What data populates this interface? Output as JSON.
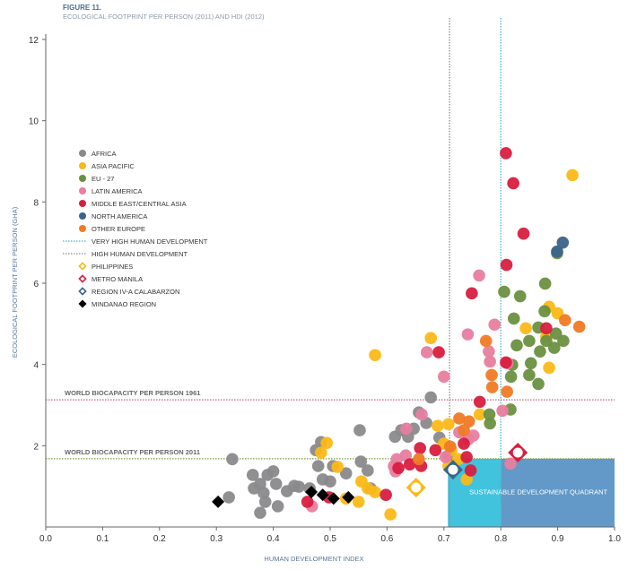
{
  "header": {
    "figure_label": "FIGURE 11.",
    "subtitle": "ECOLOGICAL FOOTPRINT PER PERSON (2011) AND HDI (2012)"
  },
  "chart_data": {
    "type": "scatter",
    "title": "ECOLOGICAL FOOTPRINT PER PERSON (2011) AND HDI (2012)",
    "xlabel": "HUMAN DEVELOPMENT INDEX",
    "ylabel": "ECOLOGICAL FOOTPRINT PER PERSON (GHA)",
    "xlim": [
      0,
      1.0
    ],
    "ylim": [
      0,
      12
    ],
    "x_ticks": [
      "0.0",
      "0.1",
      "0.2",
      "0.3",
      "0.4",
      "0.5",
      "0.6",
      "0.7",
      "0.8",
      "0.9",
      "1.0"
    ],
    "y_ticks": [
      "2",
      "4",
      "6",
      "8",
      "10",
      "12"
    ],
    "grid": false,
    "legend_placement": "left",
    "series": [
      {
        "name": "AFRICA",
        "color": "#8a8a8c",
        "marker": "circle",
        "points": [
          [
            0.328,
            1.67
          ],
          [
            0.322,
            0.73
          ],
          [
            0.364,
            1.28
          ],
          [
            0.366,
            0.95
          ],
          [
            0.377,
            1.06
          ],
          [
            0.39,
            1.28
          ],
          [
            0.383,
            0.84
          ],
          [
            0.386,
            0.62
          ],
          [
            0.4,
            1.37
          ],
          [
            0.405,
            1.06
          ],
          [
            0.377,
            0.35
          ],
          [
            0.408,
            0.51
          ],
          [
            0.424,
            0.88
          ],
          [
            0.437,
            1.01
          ],
          [
            0.445,
            0.99
          ],
          [
            0.464,
            0.95
          ],
          [
            0.475,
            1.89
          ],
          [
            0.484,
            2.09
          ],
          [
            0.487,
            1.17
          ],
          [
            0.479,
            1.5
          ],
          [
            0.5,
            1.12
          ],
          [
            0.505,
            1.5
          ],
          [
            0.528,
            1.32
          ],
          [
            0.552,
            2.38
          ],
          [
            0.554,
            1.61
          ],
          [
            0.566,
            1.39
          ],
          [
            0.571,
            0.95
          ],
          [
            0.614,
            2.22
          ],
          [
            0.625,
            2.38
          ],
          [
            0.637,
            2.22
          ],
          [
            0.647,
            2.42
          ],
          [
            0.656,
            2.82
          ],
          [
            0.677,
            3.19
          ],
          [
            0.669,
            2.56
          ],
          [
            0.692,
            2.2
          ],
          [
            0.708,
            1.76
          ]
        ]
      },
      {
        "name": "ASIA PACIFIC",
        "color": "#fbb917",
        "marker": "circle",
        "points": [
          [
            0.579,
            4.23
          ],
          [
            0.494,
            2.07
          ],
          [
            0.484,
            1.83
          ],
          [
            0.513,
            1.48
          ],
          [
            0.555,
            1.12
          ],
          [
            0.566,
            0.95
          ],
          [
            0.579,
            0.86
          ],
          [
            0.55,
            0.62
          ],
          [
            0.528,
            0.7
          ],
          [
            0.606,
            0.31
          ],
          [
            0.677,
            4.65
          ],
          [
            0.689,
            2.49
          ],
          [
            0.708,
            2.53
          ],
          [
            0.7,
            2.05
          ],
          [
            0.713,
            1.89
          ],
          [
            0.725,
            1.67
          ],
          [
            0.74,
            1.17
          ],
          [
            0.763,
            2.77
          ],
          [
            0.844,
            4.89
          ],
          [
            0.885,
            5.42
          ],
          [
            0.9,
            5.26
          ],
          [
            0.885,
            3.92
          ],
          [
            0.926,
            8.66
          ],
          [
            0.88,
            4.69
          ],
          [
            0.708,
            1.5
          ]
        ]
      },
      {
        "name": "EU - 27",
        "color": "#6a9040",
        "marker": "circle",
        "points": [
          [
            0.899,
            6.74
          ],
          [
            0.878,
            5.99
          ],
          [
            0.834,
            5.68
          ],
          [
            0.806,
            5.79
          ],
          [
            0.877,
            5.31
          ],
          [
            0.823,
            5.13
          ],
          [
            0.85,
            4.58
          ],
          [
            0.866,
            4.91
          ],
          [
            0.88,
            4.58
          ],
          [
            0.897,
            4.76
          ],
          [
            0.91,
            4.58
          ],
          [
            0.869,
            4.32
          ],
          [
            0.894,
            4.41
          ],
          [
            0.828,
            4.47
          ],
          [
            0.853,
            4.03
          ],
          [
            0.85,
            3.74
          ],
          [
            0.82,
            3.99
          ],
          [
            0.818,
            3.7
          ],
          [
            0.866,
            3.52
          ],
          [
            0.781,
            2.55
          ],
          [
            0.817,
            2.89
          ],
          [
            0.78,
            2.77
          ]
        ]
      },
      {
        "name": "LATIN AMERICA",
        "color": "#e77ea0",
        "marker": "circle",
        "points": [
          [
            0.762,
            6.19
          ],
          [
            0.742,
            4.74
          ],
          [
            0.67,
            4.3
          ],
          [
            0.789,
            4.98
          ],
          [
            0.7,
            3.7
          ],
          [
            0.779,
            4.32
          ],
          [
            0.781,
            4.07
          ],
          [
            0.812,
            4.03
          ],
          [
            0.803,
            2.86
          ],
          [
            0.661,
            2.77
          ],
          [
            0.634,
            2.42
          ],
          [
            0.633,
            1.76
          ],
          [
            0.617,
            1.67
          ],
          [
            0.612,
            1.5
          ],
          [
            0.615,
            1.37
          ],
          [
            0.727,
            2.33
          ],
          [
            0.743,
            2.16
          ],
          [
            0.752,
            2.25
          ],
          [
            0.468,
            0.51
          ],
          [
            0.817,
            1.56
          ],
          [
            0.703,
            1.72
          ]
        ]
      },
      {
        "name": "MIDDLE EAST/CENTRAL ASIA",
        "color": "#d81e3f",
        "marker": "circle",
        "points": [
          [
            0.809,
            9.2
          ],
          [
            0.822,
            8.46
          ],
          [
            0.84,
            7.22
          ],
          [
            0.81,
            6.45
          ],
          [
            0.809,
            4.05
          ],
          [
            0.691,
            4.3
          ],
          [
            0.749,
            5.75
          ],
          [
            0.88,
            4.89
          ],
          [
            0.763,
            3.08
          ],
          [
            0.658,
            1.94
          ],
          [
            0.64,
            1.54
          ],
          [
            0.62,
            1.45
          ],
          [
            0.66,
            1.5
          ],
          [
            0.685,
            1.89
          ],
          [
            0.74,
            1.72
          ],
          [
            0.735,
            2.05
          ],
          [
            0.747,
            1.39
          ],
          [
            0.598,
            0.79
          ],
          [
            0.46,
            0.62
          ],
          [
            0.498,
            0.73
          ]
        ]
      },
      {
        "name": "NORTH AMERICA",
        "color": "#3a6489",
        "marker": "circle",
        "points": [
          [
            0.909,
            7.0
          ],
          [
            0.899,
            6.78
          ]
        ]
      },
      {
        "name": "OTHER EUROPE",
        "color": "#f07a26",
        "marker": "circle",
        "points": [
          [
            0.913,
            5.09
          ],
          [
            0.938,
            4.93
          ],
          [
            0.774,
            4.58
          ],
          [
            0.784,
            3.74
          ],
          [
            0.785,
            3.44
          ],
          [
            0.811,
            3.33
          ],
          [
            0.727,
            2.67
          ],
          [
            0.735,
            2.38
          ],
          [
            0.744,
            2.6
          ],
          [
            0.656,
            1.67
          ],
          [
            0.711,
            1.98
          ]
        ]
      },
      {
        "name": "PHILIPPINES",
        "color": "#fbb917",
        "marker": "diamond-open",
        "points": [
          [
            0.651,
            0.97
          ]
        ]
      },
      {
        "name": "METRO MANILA",
        "color": "#d81e3f",
        "marker": "diamond-open",
        "points": [
          [
            0.83,
            1.83
          ]
        ]
      },
      {
        "name": "REGION IV-A CALABARZON",
        "color": "#3a6489",
        "marker": "diamond-open",
        "points": [
          [
            0.716,
            1.41
          ]
        ]
      },
      {
        "name": "MINDANAO REGION",
        "color": "#000000",
        "marker": "diamond",
        "points": [
          [
            0.303,
            0.62
          ],
          [
            0.467,
            0.86
          ],
          [
            0.487,
            0.79
          ],
          [
            0.506,
            0.7
          ],
          [
            0.532,
            0.73
          ]
        ]
      }
    ],
    "reference_lines": [
      {
        "name": "VERY HIGH HUMAN DEVELOPMENT",
        "axis": "x",
        "value": 0.8,
        "color": "#47b8c9"
      },
      {
        "name": "HIGH HUMAN DEVELOPMENT",
        "axis": "x",
        "value": 0.71,
        "color": "#8a8a8c"
      },
      {
        "name": "WORLD BIOCAPACITY PER PERSON 1961",
        "axis": "y",
        "value": 3.13,
        "color": "#c0607a"
      },
      {
        "name": "WORLD BIOCAPACITY PER PERSON 2011",
        "axis": "y",
        "value": 1.68,
        "color": "#7aa03c"
      }
    ],
    "quadrant": {
      "label": "SUSTAINABLE DEVELOPMENT QUADRANT",
      "x_range": [
        0.707,
        1.0
      ],
      "y_range": [
        0,
        1.68
      ],
      "colors": {
        "high": "#41c3de",
        "very_high": "#6299c8"
      }
    }
  }
}
